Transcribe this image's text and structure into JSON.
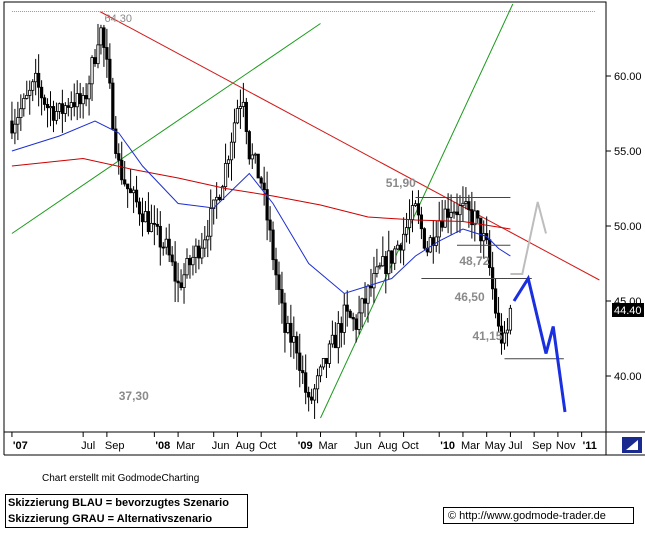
{
  "chart_data": {
    "type": "candlestick",
    "price_axis": {
      "ticks": [
        "60.00",
        "55.00",
        "50.00",
        "45.00",
        "40.00"
      ],
      "tick_values": [
        60,
        55,
        50,
        45,
        40
      ],
      "ylim": [
        36.4,
        64.8
      ],
      "last_price": "44.40"
    },
    "time_axis": {
      "ticks": [
        "'07",
        "Jul",
        "Sep",
        "'08",
        "Mar",
        "Jun",
        "Aug",
        "Oct",
        "'09",
        "Mar",
        "Jun",
        "Aug",
        "Oct",
        "'10",
        "Mar",
        "May",
        "Jul",
        "Sep",
        "Nov",
        "'11"
      ],
      "tick_months": [
        0,
        6,
        8,
        12,
        14,
        17,
        19,
        21,
        24,
        26,
        29,
        31,
        33,
        36,
        38,
        40,
        42,
        44,
        46,
        48
      ],
      "start": "2007-01",
      "end": "2011-02"
    },
    "price_path": [
      [
        0,
        57.0
      ],
      [
        1,
        58.0
      ],
      [
        2,
        59.5
      ],
      [
        3,
        58.0
      ],
      [
        4,
        57.5
      ],
      [
        5,
        58.5
      ],
      [
        6,
        58.0
      ],
      [
        7,
        61.5
      ],
      [
        7.4,
        63.5
      ],
      [
        8,
        60.5
      ],
      [
        9,
        54.0
      ],
      [
        10,
        52.0
      ],
      [
        11,
        51.0
      ],
      [
        12,
        49.5
      ],
      [
        13,
        48.5
      ],
      [
        14,
        46.0
      ],
      [
        15,
        47.5
      ],
      [
        16,
        49.0
      ],
      [
        17,
        51.0
      ],
      [
        18,
        54.0
      ],
      [
        19,
        58.0
      ],
      [
        19.5,
        58.8
      ],
      [
        20,
        55.0
      ],
      [
        21,
        53.0
      ],
      [
        22,
        48.0
      ],
      [
        23,
        43.0
      ],
      [
        24,
        42.0
      ],
      [
        25,
        38.0
      ],
      [
        26,
        40.0
      ],
      [
        27,
        42.0
      ],
      [
        28,
        44.0
      ],
      [
        29,
        43.5
      ],
      [
        30,
        45.5
      ],
      [
        31,
        47.0
      ],
      [
        32,
        48.0
      ],
      [
        33,
        49.5
      ],
      [
        34,
        51.0
      ],
      [
        35,
        48.5
      ],
      [
        36,
        50.5
      ],
      [
        37,
        51.3
      ],
      [
        38,
        51.0
      ],
      [
        39,
        50.5
      ],
      [
        40,
        48.5
      ],
      [
        41,
        43.0
      ],
      [
        41.6,
        42.0
      ],
      [
        42,
        44.4
      ]
    ],
    "series": [
      {
        "name": "",
        "color": "#cc0000",
        "points": [
          [
            0,
            54.0
          ],
          [
            6,
            54.5
          ],
          [
            10,
            53.8
          ],
          [
            14,
            53.2
          ],
          [
            18,
            52.5
          ],
          [
            22,
            52.0
          ],
          [
            26,
            51.4
          ],
          [
            30,
            50.6
          ],
          [
            34,
            50.4
          ],
          [
            38,
            50.3
          ],
          [
            42,
            49.8
          ]
        ]
      },
      {
        "name": "",
        "color": "#1d2fd0",
        "points": [
          [
            0,
            55.0
          ],
          [
            4,
            56.0
          ],
          [
            7,
            57.0
          ],
          [
            9,
            56.2
          ],
          [
            11,
            54.0
          ],
          [
            14,
            51.5
          ],
          [
            17,
            51.2
          ],
          [
            20,
            53.5
          ],
          [
            22,
            51.5
          ],
          [
            25,
            47.5
          ],
          [
            28,
            45.5
          ],
          [
            30,
            46.0
          ],
          [
            32,
            46.5
          ],
          [
            34,
            48.0
          ],
          [
            36,
            49.0
          ],
          [
            38,
            49.8
          ],
          [
            40,
            49.3
          ],
          [
            41,
            48.5
          ],
          [
            42,
            48.0
          ]
        ]
      }
    ],
    "trendlines": [
      {
        "color": "#d21a1a",
        "points": [
          [
            7.4,
            64.3
          ],
          [
            49.5,
            46.4
          ]
        ]
      },
      {
        "color": "#1a9a1a",
        "points": [
          [
            0,
            49.5
          ],
          [
            26,
            63.5
          ]
        ]
      },
      {
        "color": "#1a9a1a",
        "points": [
          [
            26,
            37.2
          ],
          [
            42.2,
            64.8
          ]
        ]
      }
    ],
    "levels": [
      {
        "label": "64.30",
        "value": 64.3,
        "from": 0,
        "to": 49.2
      },
      {
        "label": "51,90",
        "value": 51.9,
        "from": 34.0,
        "to": 42.0
      },
      {
        "label": "48,72",
        "value": 48.72,
        "from": 37.5,
        "to": 42.0
      },
      {
        "label": "46,50",
        "value": 46.5,
        "from": 34.5,
        "to": 43.8
      },
      {
        "label": "41,15",
        "value": 41.15,
        "from": 41.5,
        "to": 46.5
      },
      {
        "label": "37,30",
        "value": 37.3,
        "from": null,
        "to": null
      }
    ],
    "scenario_blue": [
      [
        42.3,
        45.0
      ],
      [
        43.5,
        46.5
      ],
      [
        45.0,
        41.5
      ],
      [
        45.6,
        43.3
      ],
      [
        46.6,
        37.6
      ]
    ],
    "scenario_grey": [
      [
        42.0,
        46.8
      ],
      [
        43.0,
        46.8
      ],
      [
        44.3,
        51.6
      ],
      [
        45.0,
        49.5
      ]
    ]
  },
  "texts": {
    "credit": "Chart erstellt mit GodmodeCharting",
    "legend_blue": "Skizzierung BLAU = bevorzugtes Szenario",
    "legend_grey": "Skizzierung GRAU = Alternativszenario",
    "url": "© http://www.godmode-trader.de"
  }
}
